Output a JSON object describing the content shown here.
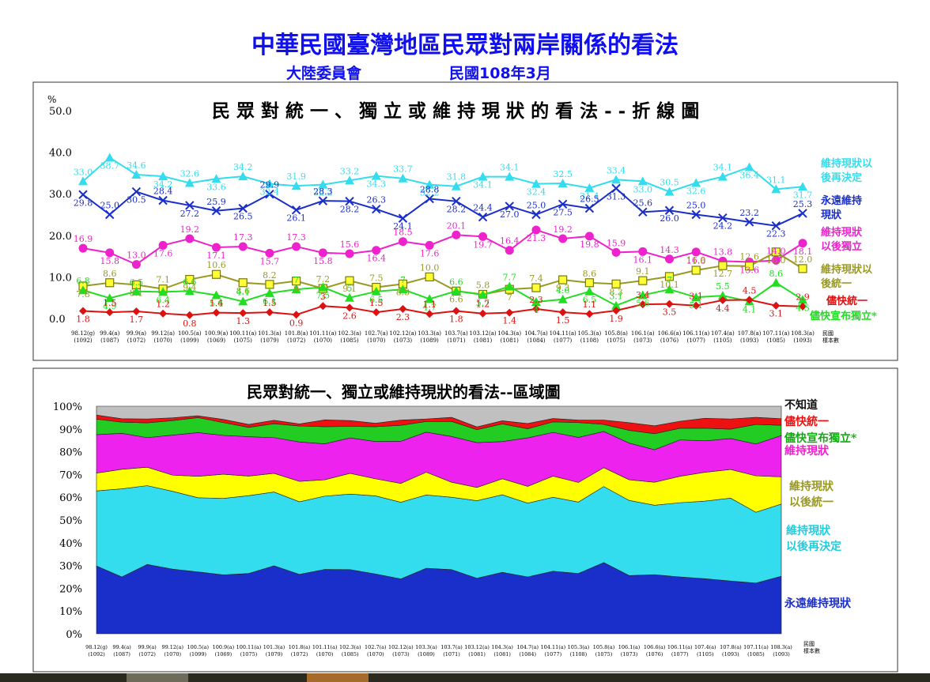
{
  "header": {
    "title": "中華民國臺灣地區民眾對兩岸關係的看法",
    "org": "大陸委員會",
    "date": "民國108年3月"
  },
  "chart_data": [
    {
      "type": "line",
      "title": "民 眾 對 統 一 、 獨 立 或 維 持 現 狀 的 看 法 - - 折 線 圖",
      "ylabel": "%",
      "ylim": [
        0,
        50
      ],
      "y_ticks": [
        "50.0",
        "40.0",
        "30.0",
        "20.0",
        "10.0",
        "0.0"
      ],
      "sample_label": [
        "民國",
        "樣本數"
      ],
      "categories": [
        [
          "98.12(g)",
          "(1092)"
        ],
        [
          "99.4(a)",
          "(1087)"
        ],
        [
          "99.9(a)",
          "(1072)"
        ],
        [
          "99.12(a)",
          "(1070)"
        ],
        [
          "100.5(a)",
          "(1099)"
        ],
        [
          "100.9(a)",
          "(1069)"
        ],
        [
          "100.11(a)",
          "(1075)"
        ],
        [
          "101.3(a)",
          "(1079)"
        ],
        [
          "101.8(a)",
          "(1072)"
        ],
        [
          "101.11(a)",
          "(1070)"
        ],
        [
          "102.3(a)",
          "(1085)"
        ],
        [
          "102.7(a)",
          "(1070)"
        ],
        [
          "102.12(a)",
          "(1073)"
        ],
        [
          "103.3(a)",
          "(1089)"
        ],
        [
          "103.7(a)",
          "(1071)"
        ],
        [
          "103.12(a)",
          "(1081)"
        ],
        [
          "104.3(a)",
          "(1081)"
        ],
        [
          "104.7(a)",
          "(1084)"
        ],
        [
          "104.11(a)",
          "(1077)"
        ],
        [
          "105.3(a)",
          "(1108)"
        ],
        [
          "105.8(a)",
          "(1075)"
        ],
        [
          "106.1(a)",
          "(1073)"
        ],
        [
          "106.6(a)",
          "(1076)"
        ],
        [
          "106.11(a)",
          "(1077)"
        ],
        [
          "107.4(a)",
          "(1105)"
        ],
        [
          "107.8(a)",
          "(1093)"
        ],
        [
          "107.11(a)",
          "(1085)"
        ],
        [
          "108.3(a)",
          "(1093)"
        ]
      ],
      "series": [
        {
          "name": "維持現狀以後再決定",
          "label_lines": [
            "維持現狀以",
            "後再決定"
          ],
          "color": "#33ddee",
          "marker": "triangle",
          "values": [
            33.0,
            38.7,
            34.6,
            34.2,
            32.6,
            33.6,
            34.2,
            32.4,
            31.9,
            32.2,
            33.2,
            34.3,
            33.7,
            32.2,
            31.8,
            34.1,
            34.1,
            32.4,
            32.5,
            31.4,
            33.4,
            33.0,
            30.5,
            32.6,
            34.1,
            36.4,
            31.1,
            31.7
          ]
        },
        {
          "name": "永遠維持現狀",
          "label_lines": [
            "永遠維持",
            "現狀"
          ],
          "color": "#1a2ec9",
          "marker": "x",
          "values": [
            29.8,
            25.0,
            30.5,
            28.4,
            27.2,
            25.9,
            26.5,
            29.9,
            26.1,
            28.3,
            28.2,
            26.3,
            24.1,
            28.8,
            28.2,
            24.4,
            27.0,
            25.0,
            27.5,
            26.5,
            31.3,
            25.6,
            26.0,
            25.0,
            24.2,
            23.2,
            22.3,
            25.3
          ]
        },
        {
          "name": "維持現狀以後獨立",
          "label_lines": [
            "維持現狀",
            "以後獨立"
          ],
          "color": "#ee22cc",
          "marker": "circle",
          "values": [
            16.9,
            15.8,
            13.0,
            17.6,
            19.2,
            17.1,
            17.3,
            15.7,
            17.3,
            15.8,
            15.6,
            16.4,
            18.5,
            17.6,
            20.1,
            19.7,
            16.4,
            21.3,
            19.2,
            19.8,
            15.9,
            16.1,
            14.3,
            16.0,
            13.8,
            13.6,
            14.0,
            18.1
          ]
        },
        {
          "name": "維持現狀以後統一",
          "label_lines": [
            "維持現狀以",
            "後統一"
          ],
          "color": "#999922",
          "marker": "square",
          "values": [
            7.8,
            8.6,
            8.1,
            7.1,
            9.4,
            10.6,
            8.6,
            8.2,
            9.0,
            7.2,
            9.1,
            7.5,
            8.3,
            10.0,
            6.6,
            5.8,
            7.0,
            7.4,
            9.3,
            8.6,
            8.3,
            9.1,
            10.1,
            11.6,
            12.7,
            12.6,
            16.0,
            12.0
          ]
        },
        {
          "name": "儘快宣布獨立",
          "label_lines": [
            "儘快宣布獨立*"
          ],
          "color": "#22dd22",
          "marker": "triangle",
          "values": [
            6.8,
            4.9,
            6.5,
            6.4,
            6.6,
            5.6,
            4.1,
            6.1,
            7.0,
            7.5,
            5.0,
            6.5,
            7.0,
            4.7,
            6.6,
            5.7,
            7.7,
            4.0,
            4.6,
            6.5,
            3.1,
            5.6,
            7.0,
            5.1,
            5.5,
            4.1,
            8.6,
            4.5
          ]
        },
        {
          "name": "儘快統一",
          "label_lines": [
            "儘快統一"
          ],
          "color": "#dd1111",
          "marker": "diamond",
          "values": [
            1.8,
            1.5,
            1.7,
            1.2,
            0.8,
            1.4,
            1.3,
            1.5,
            0.9,
            3.0,
            2.6,
            1.5,
            2.3,
            1.1,
            1.8,
            1.2,
            1.4,
            2.3,
            1.5,
            1.1,
            1.9,
            3.4,
            3.5,
            3.1,
            4.4,
            4.5,
            3.1,
            2.9
          ]
        }
      ]
    },
    {
      "type": "area",
      "stacked": true,
      "title": "民眾對統一、獨立或維持現狀的看法--區域圖",
      "ylim": [
        0,
        100
      ],
      "y_ticks": [
        "100%",
        "90%",
        "80%",
        "70%",
        "60%",
        "50%",
        "40%",
        "30%",
        "20%",
        "10%",
        "0%"
      ],
      "sample_label": [
        "民國",
        "樣本數"
      ],
      "stack_order_bottom_to_top": [
        "永遠維持現狀",
        "維持現狀以後再決定",
        "維持現狀以後統一",
        "維持現狀以後獨立",
        "儘快宣布獨立",
        "儘快統一",
        "不知道"
      ],
      "area_colors": {
        "永遠維持現狀": "#1a2ec9",
        "維持現狀以後再決定": "#33ddee",
        "維持現狀以後統一": "#ffff00",
        "維持現狀以後獨立": "#ee22ee",
        "儘快宣布獨立": "#22cc22",
        "儘快統一": "#ee1111",
        "不知道": "#c0c0c0"
      },
      "legend": [
        {
          "lines": [
            "不知道"
          ],
          "color": "#111111"
        },
        {
          "lines": [
            "儘快統一"
          ],
          "color": "#ee1111"
        },
        {
          "lines": [
            "儘快宣布獨立*"
          ],
          "color": "#11aa11"
        },
        {
          "lines": [
            "維持現狀"
          ],
          "color": "#ee22cc"
        },
        {
          "lines": [
            "維持現狀",
            "以後統一"
          ],
          "color": "#999922"
        },
        {
          "lines": [
            "維持現狀",
            "以後再決定"
          ],
          "color": "#22ccdd"
        },
        {
          "lines": [
            "永遠維持現狀"
          ],
          "color": "#1a2ec9"
        }
      ]
    }
  ]
}
